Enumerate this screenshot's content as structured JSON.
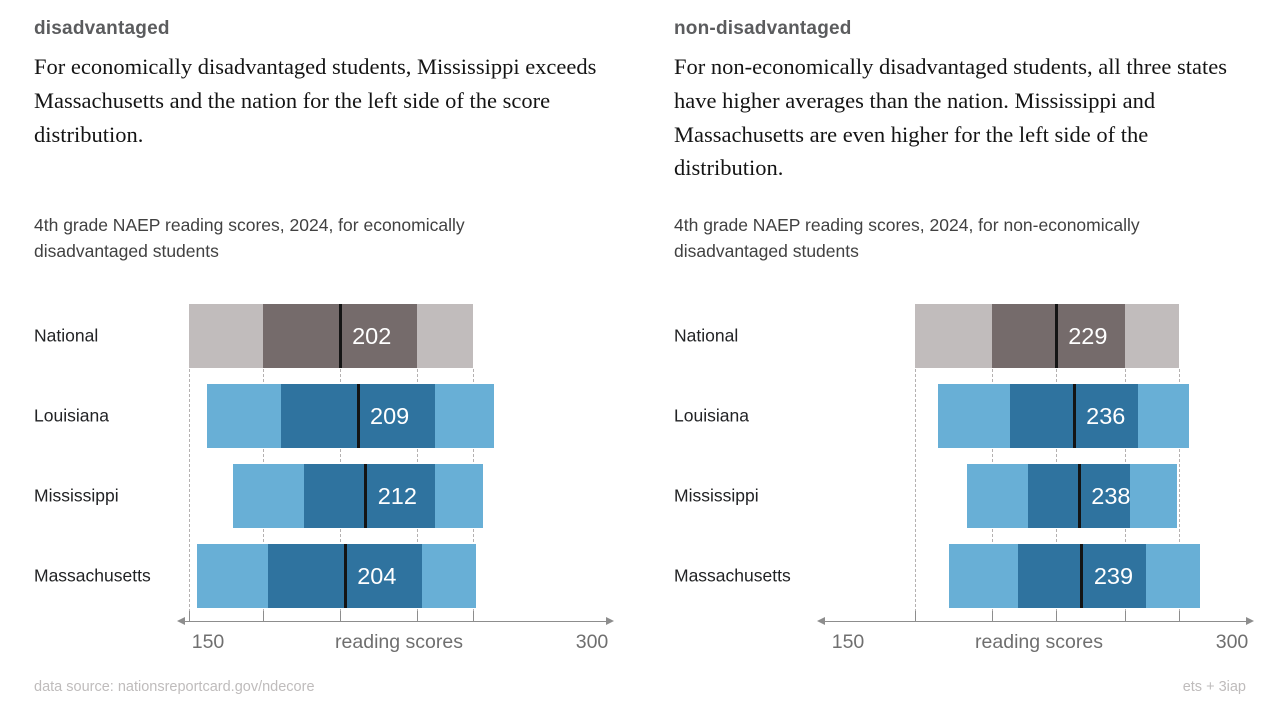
{
  "page": {
    "background": "#ffffff",
    "footer_left": "data source: nationsreportcard.gov/ndecore",
    "footer_right": "ets + 3iap"
  },
  "panels": [
    {
      "tag": "disadvantaged",
      "headline": "For economically disadvantaged students, Mississippi exceeds Massachusetts and the nation for the left side of the score distribution.",
      "chart_title": "4th grade NAEP reading scores, 2024, for economically disadvantaged students"
    },
    {
      "tag": "non-disadvantaged",
      "headline": "For non-economically disadvantaged students, all three states have higher averages than the nation. Mississippi and Massachusetts  are even higher for the left side of the distribution.",
      "chart_title": "4th grade NAEP reading scores, 2024, for non-economically disadvantaged students"
    }
  ],
  "chart_data": [
    {
      "type": "bar",
      "variant": "horizontal percentile-range bars (light outer band, dark inner band) with black mean line and value label",
      "title": "4th grade NAEP reading scores, 2024, for economically disadvantaged students",
      "categories": [
        "National",
        "Louisiana",
        "Mississippi",
        "Massachusetts"
      ],
      "mean_values": [
        202,
        209,
        212,
        204
      ],
      "rows": [
        {
          "label": "National",
          "mean": 202,
          "inner": [
            172,
            232
          ],
          "outer": [
            143,
            254
          ]
        },
        {
          "label": "Louisiana",
          "mean": 209,
          "inner": [
            179,
            239
          ],
          "outer": [
            150,
            262
          ]
        },
        {
          "label": "Mississippi",
          "mean": 212,
          "inner": [
            188,
            239
          ],
          "outer": [
            160,
            258
          ]
        },
        {
          "label": "Massachusetts",
          "mean": 204,
          "inner": [
            174,
            234
          ],
          "outer": [
            146,
            255
          ]
        }
      ],
      "bands_note": "only mean values are labeled in the image; inner/outer band edges are estimated from pixel positions",
      "xlabel": "reading scores",
      "x_axis": {
        "min_label": "150",
        "max_label": "300",
        "range": [
          150,
          300
        ],
        "arrows": "both ends"
      },
      "gridlines": "vertical dashed lines aligned with the National bar's band edges and mean",
      "legend": "none",
      "colors": {
        "national_light": "#c1bcbc",
        "national_dark": "#756b6b",
        "state_light": "#68afd6",
        "state_dark": "#2f739f",
        "mean_line": "#141414",
        "value_text": "#ffffff"
      }
    },
    {
      "type": "bar",
      "variant": "horizontal percentile-range bars (light outer band, dark inner band) with black mean line and value label",
      "title": "4th grade NAEP reading scores, 2024, for non-economically disadvantaged students",
      "categories": [
        "National",
        "Louisiana",
        "Mississippi",
        "Massachusetts"
      ],
      "mean_values": [
        229,
        236,
        238,
        239
      ],
      "rows": [
        {
          "label": "National",
          "mean": 229,
          "inner": [
            204,
            256
          ],
          "outer": [
            174,
            277
          ]
        },
        {
          "label": "Louisiana",
          "mean": 236,
          "inner": [
            211,
            261
          ],
          "outer": [
            183,
            281
          ]
        },
        {
          "label": "Mississippi",
          "mean": 238,
          "inner": [
            218,
            258
          ],
          "outer": [
            194,
            276
          ]
        },
        {
          "label": "Massachusetts",
          "mean": 239,
          "inner": [
            214,
            264
          ],
          "outer": [
            187,
            285
          ]
        }
      ],
      "bands_note": "only mean values are labeled in the image; inner/outer band edges are estimated from pixel positions",
      "xlabel": "reading scores",
      "x_axis": {
        "min_label": "150",
        "max_label": "300",
        "range": [
          150,
          300
        ],
        "arrows": "both ends"
      },
      "gridlines": "vertical dashed lines aligned with the National bar's band edges and mean",
      "legend": "none",
      "colors": {
        "national_light": "#c1bcbc",
        "national_dark": "#756b6b",
        "state_light": "#68afd6",
        "state_dark": "#2f739f",
        "mean_line": "#141414",
        "value_text": "#ffffff"
      }
    }
  ]
}
